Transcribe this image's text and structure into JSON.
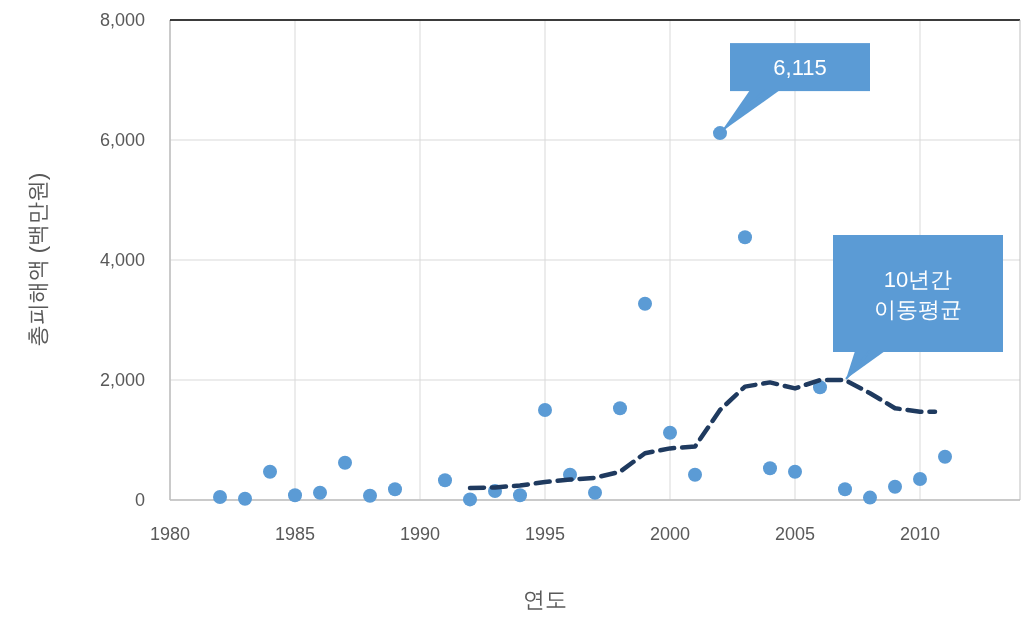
{
  "chart_data": {
    "type": "scatter",
    "xlabel": "연도",
    "ylabel": "총피해액 (백만원)",
    "xlim": [
      1980,
      2014
    ],
    "xticks": [
      1980,
      1985,
      1990,
      1995,
      2000,
      2005,
      2010
    ],
    "ylim": [
      0,
      8000
    ],
    "yticks": [
      0,
      {
        "value": 2000,
        "label": "2,000"
      },
      {
        "value": 4000,
        "label": "4,000"
      },
      {
        "value": 6000,
        "label": "6,000"
      },
      {
        "value": 8000,
        "label": "8,000"
      }
    ],
    "grid": true,
    "series": [
      {
        "marker": "circle",
        "color": "#5b9bd5",
        "x": [
          1982,
          1983,
          1984,
          1985,
          1986,
          1987,
          1988,
          1989,
          1991,
          1992,
          1993,
          1994,
          1995,
          1996,
          1997,
          1998,
          1999,
          2000,
          2001,
          2002,
          2003,
          2004,
          2005,
          2006,
          2007,
          2008,
          2009,
          2010,
          2011
        ],
        "values": [
          50,
          20,
          470,
          80,
          120,
          620,
          70,
          180,
          330,
          10,
          150,
          80,
          1500,
          420,
          120,
          1530,
          3270,
          1120,
          420,
          6115,
          4380,
          530,
          470,
          1880,
          180,
          40,
          220,
          350,
          720
        ]
      },
      {
        "type": "line",
        "color": "#1f3a5f",
        "line_style": "dashed",
        "x": [
          1992,
          1993,
          1994,
          1995,
          1996,
          1997,
          1998,
          1999,
          2000,
          2001,
          2002,
          2003,
          2004,
          2005,
          2006,
          2007,
          2008,
          2009,
          2010,
          2010.6
        ],
        "values": [
          200,
          210,
          240,
          300,
          340,
          370,
          470,
          780,
          860,
          890,
          1500,
          1890,
          1960,
          1860,
          2000,
          2000,
          1780,
          1530,
          1470,
          1470
        ]
      }
    ],
    "annotations": [
      {
        "text": "6,115",
        "x": 2002,
        "y": 6115
      },
      {
        "text": "10년간\n이동평균",
        "x": 2007,
        "y": 2000
      }
    ]
  }
}
